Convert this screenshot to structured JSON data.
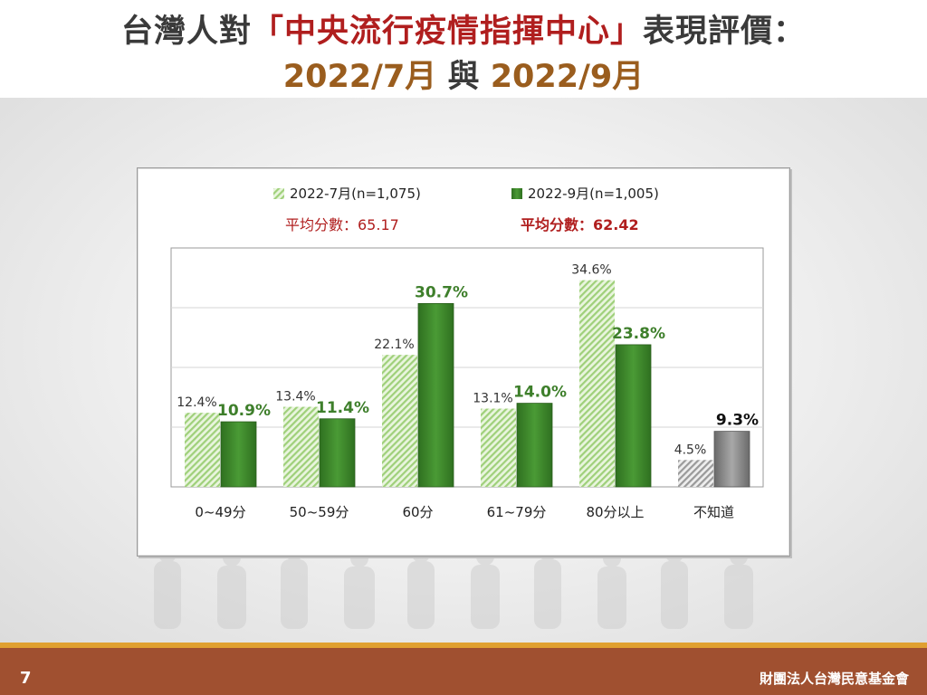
{
  "slide": {
    "title_prefix": "台灣人對",
    "title_highlight": "「中央流行疫情指揮中心」",
    "title_suffix": "表現評價：",
    "subtitle_a": "2022/7月",
    "subtitle_mid": " 與 ",
    "subtitle_b": "2022/9月",
    "page_number": "7",
    "organization": "財團法人台灣民意基金會"
  },
  "colors": {
    "title_red": "#b01e1e",
    "subtitle_brown": "#9a5d1e",
    "series1_green": "#9fd07a",
    "series2_green": "#3c8a2a",
    "series2_label": "#3e7f2b",
    "unknown_gray": "#7a7a7a",
    "avg_red": "#b01e1e",
    "footer": "#a05030",
    "footer_stripe": "#e0a030"
  },
  "chart_data": {
    "type": "bar",
    "categories": [
      "0~49分",
      "50~59分",
      "60分",
      "61~79分",
      "80分以上",
      "不知道"
    ],
    "series": [
      {
        "name": "2022-7月(n=1,075)",
        "values": [
          12.4,
          13.4,
          22.1,
          13.1,
          34.6,
          4.5
        ],
        "labels": [
          "12.4%",
          "13.4%",
          "22.1%",
          "13.1%",
          "34.6%",
          "4.5%"
        ]
      },
      {
        "name": "2022-9月(n=1,005)",
        "values": [
          10.9,
          11.4,
          30.7,
          14.0,
          23.8,
          9.3
        ],
        "labels": [
          "10.9%",
          "11.4%",
          "30.7%",
          "14.0%",
          "23.8%",
          "9.3%"
        ]
      }
    ],
    "averages": [
      "平均分數：65.17",
      "平均分數：62.42"
    ],
    "ylim": [
      0,
      40
    ],
    "grid": true,
    "legend": "top"
  }
}
